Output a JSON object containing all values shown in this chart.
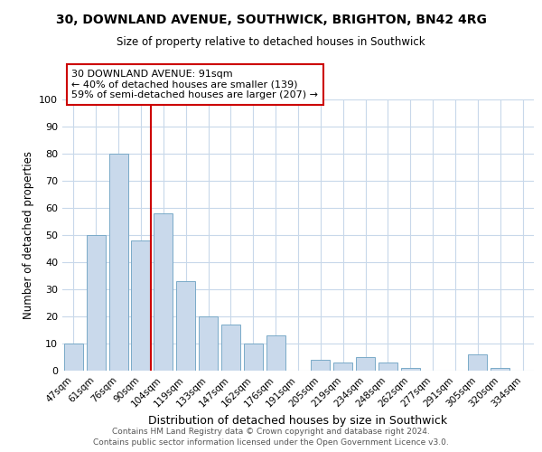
{
  "title": "30, DOWNLAND AVENUE, SOUTHWICK, BRIGHTON, BN42 4RG",
  "subtitle": "Size of property relative to detached houses in Southwick",
  "xlabel": "Distribution of detached houses by size in Southwick",
  "ylabel": "Number of detached properties",
  "bar_labels": [
    "47sqm",
    "61sqm",
    "76sqm",
    "90sqm",
    "104sqm",
    "119sqm",
    "133sqm",
    "147sqm",
    "162sqm",
    "176sqm",
    "191sqm",
    "205sqm",
    "219sqm",
    "234sqm",
    "248sqm",
    "262sqm",
    "277sqm",
    "291sqm",
    "305sqm",
    "320sqm",
    "334sqm"
  ],
  "bar_values": [
    10,
    50,
    80,
    48,
    58,
    33,
    20,
    17,
    10,
    13,
    0,
    4,
    3,
    5,
    3,
    1,
    0,
    0,
    6,
    1,
    0
  ],
  "bar_color": "#c9d9eb",
  "bar_edge_color": "#7aaac8",
  "vline_x_index": 3,
  "vline_color": "#cc0000",
  "annotation_text": "30 DOWNLAND AVENUE: 91sqm\n← 40% of detached houses are smaller (139)\n59% of semi-detached houses are larger (207) →",
  "annotation_box_color": "white",
  "annotation_box_edge_color": "#cc0000",
  "ylim": [
    0,
    100
  ],
  "yticks": [
    0,
    10,
    20,
    30,
    40,
    50,
    60,
    70,
    80,
    90,
    100
  ],
  "footer_line1": "Contains HM Land Registry data © Crown copyright and database right 2024.",
  "footer_line2": "Contains public sector information licensed under the Open Government Licence v3.0.",
  "background_color": "#ffffff",
  "grid_color": "#c8d8ea"
}
